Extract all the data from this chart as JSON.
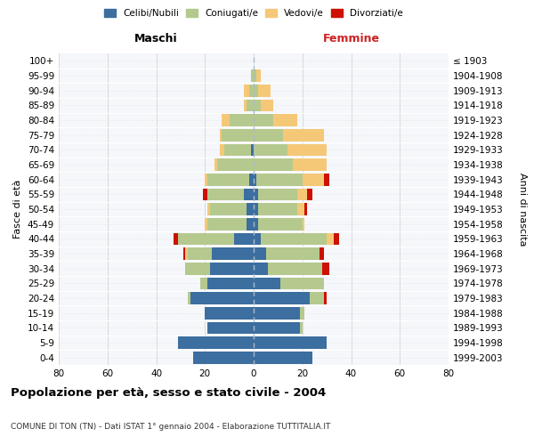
{
  "age_groups": [
    "0-4",
    "5-9",
    "10-14",
    "15-19",
    "20-24",
    "25-29",
    "30-34",
    "35-39",
    "40-44",
    "45-49",
    "50-54",
    "55-59",
    "60-64",
    "65-69",
    "70-74",
    "75-79",
    "80-84",
    "85-89",
    "90-94",
    "95-99",
    "100+"
  ],
  "birth_years": [
    "1999-2003",
    "1994-1998",
    "1989-1993",
    "1984-1988",
    "1979-1983",
    "1974-1978",
    "1969-1973",
    "1964-1968",
    "1959-1963",
    "1954-1958",
    "1949-1953",
    "1944-1948",
    "1939-1943",
    "1934-1938",
    "1929-1933",
    "1924-1928",
    "1919-1923",
    "1914-1918",
    "1909-1913",
    "1904-1908",
    "≤ 1903"
  ],
  "male": {
    "celibi": [
      25,
      31,
      19,
      20,
      26,
      19,
      18,
      17,
      8,
      3,
      3,
      4,
      2,
      0,
      1,
      0,
      0,
      0,
      0,
      0,
      0
    ],
    "coniugati": [
      0,
      0,
      0,
      0,
      1,
      3,
      10,
      10,
      23,
      16,
      15,
      15,
      17,
      15,
      11,
      13,
      10,
      3,
      2,
      1,
      0
    ],
    "vedovi": [
      0,
      0,
      0,
      0,
      0,
      0,
      0,
      1,
      0,
      1,
      1,
      0,
      1,
      1,
      2,
      1,
      3,
      1,
      2,
      0,
      0
    ],
    "divorziati": [
      0,
      0,
      0,
      0,
      0,
      0,
      0,
      1,
      2,
      0,
      0,
      2,
      0,
      0,
      0,
      0,
      0,
      0,
      0,
      0,
      0
    ]
  },
  "female": {
    "nubili": [
      24,
      30,
      19,
      19,
      23,
      11,
      6,
      5,
      3,
      2,
      2,
      2,
      1,
      0,
      0,
      0,
      0,
      0,
      0,
      0,
      0
    ],
    "coniugate": [
      0,
      0,
      1,
      2,
      6,
      18,
      22,
      22,
      27,
      18,
      16,
      16,
      19,
      16,
      14,
      12,
      8,
      3,
      2,
      1,
      0
    ],
    "vedove": [
      0,
      0,
      0,
      0,
      0,
      0,
      0,
      0,
      3,
      1,
      3,
      4,
      9,
      14,
      16,
      17,
      10,
      5,
      5,
      2,
      0
    ],
    "divorziate": [
      0,
      0,
      0,
      0,
      1,
      0,
      3,
      2,
      2,
      0,
      1,
      2,
      2,
      0,
      0,
      0,
      0,
      0,
      0,
      0,
      0
    ]
  },
  "colors": {
    "celibi_nubili": "#3c6e9f",
    "coniugati": "#b5c98e",
    "vedovi": "#f5c878",
    "divorziati": "#cc1100"
  },
  "xlim": 80,
  "title": "Popolazione per età, sesso e stato civile - 2004",
  "subtitle": "COMUNE DI TON (TN) - Dati ISTAT 1° gennaio 2004 - Elaborazione TUTTITALIA.IT",
  "ylabel_left": "Fasce di età",
  "ylabel_right": "Anni di nascita",
  "xlabel_left": "Maschi",
  "xlabel_right": "Femmine",
  "bg_color": "#ffffff",
  "plot_bg": "#f5f7fa"
}
